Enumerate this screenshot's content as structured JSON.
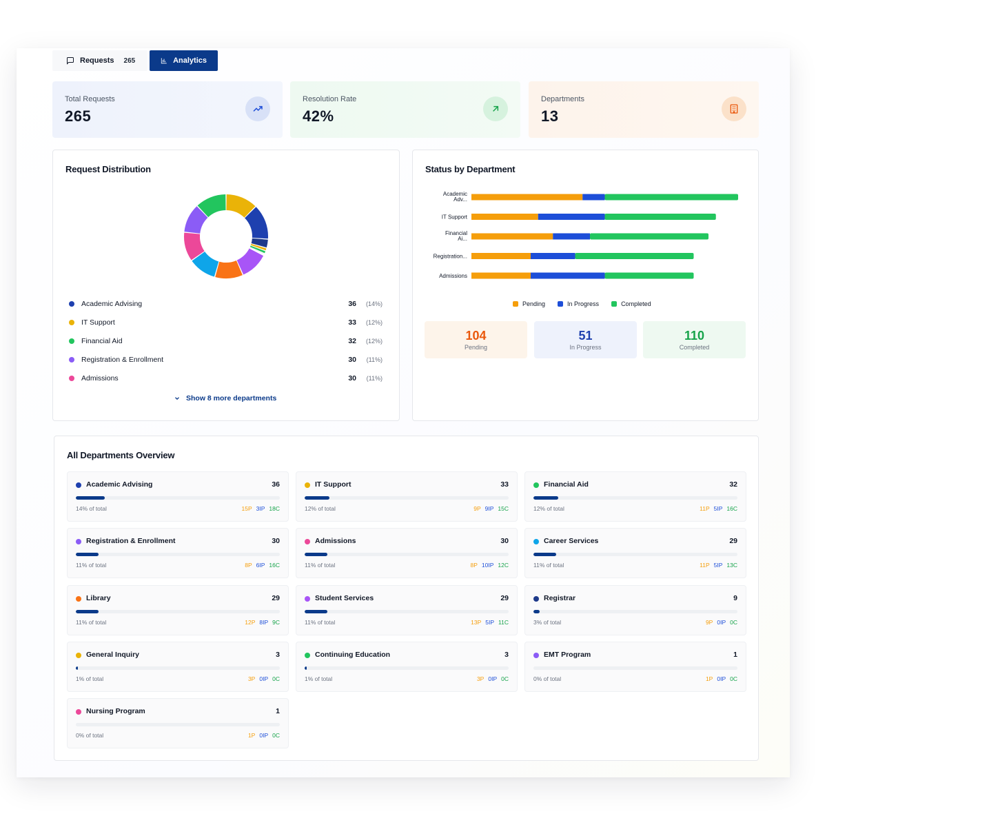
{
  "tabs": {
    "requests_label": "Requests",
    "requests_count": "265",
    "analytics_label": "Analytics"
  },
  "stats": [
    {
      "label": "Total Requests",
      "value": "265",
      "icon": "trending-up-icon"
    },
    {
      "label": "Resolution Rate",
      "value": "42%",
      "icon": "arrow-up-right-icon"
    },
    {
      "label": "Departments",
      "value": "13",
      "icon": "building-icon"
    }
  ],
  "distribution": {
    "title": "Request Distribution",
    "legend": [
      {
        "name": "Academic Advising",
        "count": "36",
        "pct": "(14%)",
        "color": "#1e40af"
      },
      {
        "name": "IT Support",
        "count": "33",
        "pct": "(12%)",
        "color": "#eab308"
      },
      {
        "name": "Financial Aid",
        "count": "32",
        "pct": "(12%)",
        "color": "#22c55e"
      },
      {
        "name": "Registration & Enrollment",
        "count": "30",
        "pct": "(11%)",
        "color": "#8b5cf6"
      },
      {
        "name": "Admissions",
        "count": "30",
        "pct": "(11%)",
        "color": "#ec4899"
      }
    ],
    "show_more": "Show 8 more departments"
  },
  "status": {
    "title": "Status by Department",
    "legend": {
      "pending": "Pending",
      "in_progress": "In Progress",
      "completed": "Completed"
    },
    "summary": [
      {
        "value": "104",
        "label": "Pending"
      },
      {
        "value": "51",
        "label": "In Progress"
      },
      {
        "value": "110",
        "label": "Completed"
      }
    ]
  },
  "chart_data": [
    {
      "type": "pie",
      "title": "",
      "categories": [
        "IT Support",
        "Academic Advising",
        "Registrar",
        "General Inquiry",
        "Continuing Education",
        "EMT Program",
        "Nursing Program",
        "Student Services",
        "Library",
        "Career Services",
        "Admissions",
        "Registration & Enrollment",
        "Financial Aid"
      ],
      "values": [
        33,
        36,
        9,
        3,
        3,
        1,
        1,
        29,
        29,
        29,
        30,
        30,
        32
      ],
      "colors": [
        "#eab308",
        "#1e40af",
        "#1e3a8a",
        "#eab308",
        "#22c55e",
        "#8b5cf6",
        "#ec4899",
        "#a855f7",
        "#f97316",
        "#0ea5e9",
        "#ec4899",
        "#8b5cf6",
        "#22c55e"
      ]
    },
    {
      "type": "bar",
      "orientation": "horizontal",
      "stacked": true,
      "categories": [
        "Academic Adv...",
        "IT Support",
        "Financial Ai...",
        "Registration...",
        "Admissions"
      ],
      "series": [
        {
          "name": "Pending",
          "color": "#f59e0b",
          "values": [
            15,
            9,
            11,
            8,
            8
          ]
        },
        {
          "name": "In Progress",
          "color": "#1d4ed8",
          "values": [
            3,
            9,
            5,
            6,
            10
          ]
        },
        {
          "name": "Completed",
          "color": "#22c55e",
          "values": [
            18,
            15,
            16,
            16,
            12
          ]
        }
      ],
      "legend": "bottom"
    }
  ],
  "overview": {
    "title": "All Departments Overview",
    "departments": [
      {
        "name": "Academic Advising",
        "count": "36",
        "of_total": "14% of total",
        "share": 0.14,
        "color": "#1e40af",
        "p": "15P",
        "ip": "3IP",
        "c": "18C"
      },
      {
        "name": "IT Support",
        "count": "33",
        "of_total": "12% of total",
        "share": 0.12,
        "color": "#eab308",
        "p": "9P",
        "ip": "9IP",
        "c": "15C"
      },
      {
        "name": "Financial Aid",
        "count": "32",
        "of_total": "12% of total",
        "share": 0.12,
        "color": "#22c55e",
        "p": "11P",
        "ip": "5IP",
        "c": "16C"
      },
      {
        "name": "Registration & Enrollment",
        "count": "30",
        "of_total": "11% of total",
        "share": 0.11,
        "color": "#8b5cf6",
        "p": "8P",
        "ip": "6IP",
        "c": "16C"
      },
      {
        "name": "Admissions",
        "count": "30",
        "of_total": "11% of total",
        "share": 0.11,
        "color": "#ec4899",
        "p": "8P",
        "ip": "10IP",
        "c": "12C"
      },
      {
        "name": "Career Services",
        "count": "29",
        "of_total": "11% of total",
        "share": 0.11,
        "color": "#0ea5e9",
        "p": "11P",
        "ip": "5IP",
        "c": "13C"
      },
      {
        "name": "Library",
        "count": "29",
        "of_total": "11% of total",
        "share": 0.11,
        "color": "#f97316",
        "p": "12P",
        "ip": "8IP",
        "c": "9C"
      },
      {
        "name": "Student Services",
        "count": "29",
        "of_total": "11% of total",
        "share": 0.11,
        "color": "#a855f7",
        "p": "13P",
        "ip": "5IP",
        "c": "11C"
      },
      {
        "name": "Registrar",
        "count": "9",
        "of_total": "3% of total",
        "share": 0.03,
        "color": "#1e3a8a",
        "p": "9P",
        "ip": "0IP",
        "c": "0C"
      },
      {
        "name": "General Inquiry",
        "count": "3",
        "of_total": "1% of total",
        "share": 0.01,
        "color": "#eab308",
        "p": "3P",
        "ip": "0IP",
        "c": "0C"
      },
      {
        "name": "Continuing Education",
        "count": "3",
        "of_total": "1% of total",
        "share": 0.01,
        "color": "#22c55e",
        "p": "3P",
        "ip": "0IP",
        "c": "0C"
      },
      {
        "name": "EMT Program",
        "count": "1",
        "of_total": "0% of total",
        "share": 0.0,
        "color": "#8b5cf6",
        "p": "1P",
        "ip": "0IP",
        "c": "0C"
      },
      {
        "name": "Nursing Program",
        "count": "1",
        "of_total": "0% of total",
        "share": 0.0,
        "color": "#ec4899",
        "p": "1P",
        "ip": "0IP",
        "c": "0C"
      }
    ]
  }
}
